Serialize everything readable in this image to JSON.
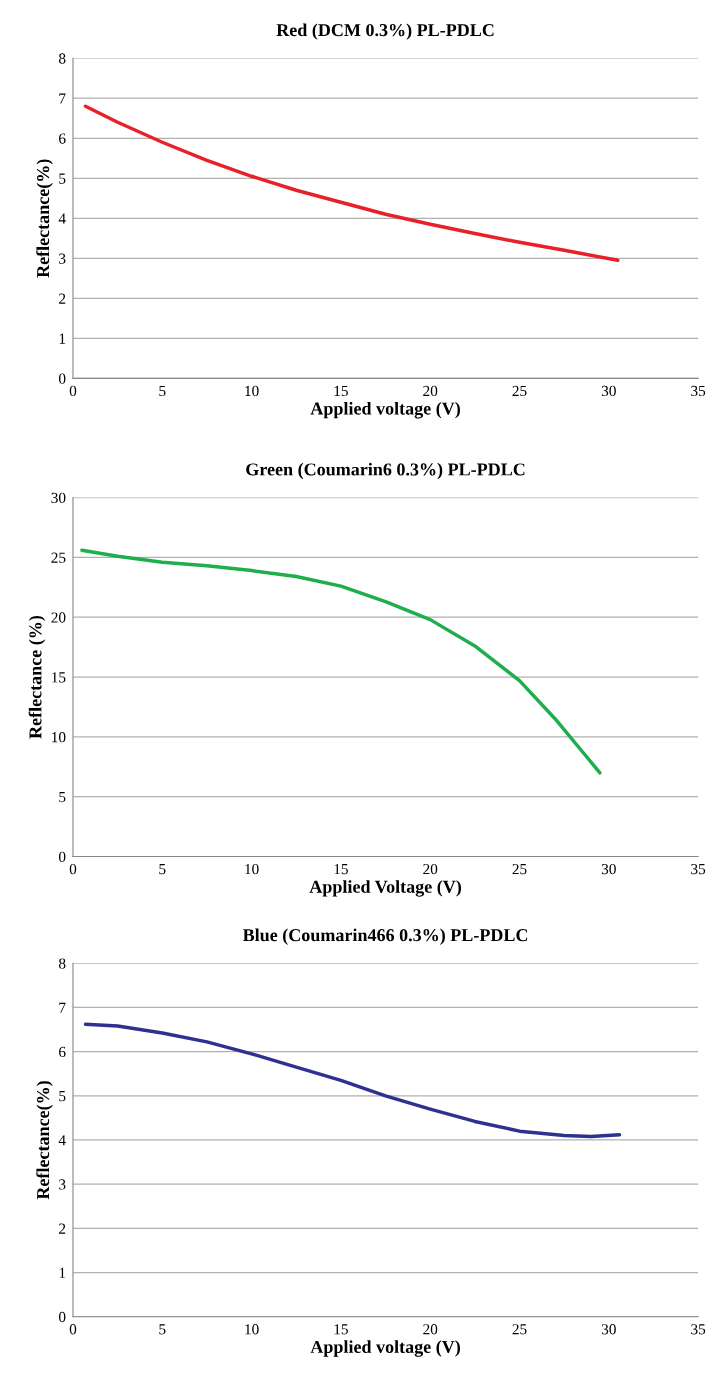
{
  "chart_data": [
    {
      "type": "line",
      "title": "Red (DCM 0.3%) PL-PDLC",
      "xlabel": "Applied voltage (V)",
      "ylabel": "Reflectance(%)",
      "xlim": [
        0,
        35
      ],
      "xticks": [
        0,
        5,
        10,
        15,
        20,
        25,
        30,
        35
      ],
      "ylim": [
        0,
        8
      ],
      "yticks": [
        0,
        1,
        2,
        3,
        4,
        5,
        6,
        7,
        8
      ],
      "grid": "y",
      "marker": "none",
      "line_style": "solid",
      "series": [
        {
          "color": "#e8202a",
          "x": [
            0.7,
            2.5,
            5,
            7.5,
            10,
            12.5,
            15,
            17.5,
            20,
            22.5,
            25,
            27.5,
            30.5
          ],
          "values": [
            6.8,
            6.4,
            5.9,
            5.45,
            5.05,
            4.7,
            4.4,
            4.1,
            3.85,
            3.62,
            3.4,
            3.2,
            2.95
          ]
        }
      ]
    },
    {
      "type": "line",
      "title": "Green (Coumarin6 0.3%) PL-PDLC",
      "xlabel": "Applied Voltage (V)",
      "ylabel": "Reflectance (%)",
      "xlim": [
        0,
        35
      ],
      "xticks": [
        0,
        5,
        10,
        15,
        20,
        25,
        30,
        35
      ],
      "ylim": [
        0,
        30
      ],
      "yticks": [
        0,
        5,
        10,
        15,
        20,
        25,
        30
      ],
      "grid": "y",
      "marker": "none",
      "line_style": "solid",
      "series": [
        {
          "color": "#1fae4b",
          "x": [
            0.5,
            2.5,
            5,
            7.5,
            10,
            12.5,
            15,
            17.5,
            20,
            22.5,
            25,
            27,
            28.5,
            29.5
          ],
          "values": [
            25.6,
            25.1,
            24.6,
            24.3,
            23.9,
            23.4,
            22.6,
            21.3,
            19.8,
            17.6,
            14.7,
            11.5,
            8.8,
            7.0
          ]
        }
      ]
    },
    {
      "type": "line",
      "title": "Blue (Coumarin466 0.3%) PL-PDLC",
      "xlabel": "Applied voltage (V)",
      "ylabel": "Reflectance(%)",
      "xlim": [
        0,
        35
      ],
      "xticks": [
        0,
        5,
        10,
        15,
        20,
        25,
        30,
        35
      ],
      "ylim": [
        0,
        8
      ],
      "yticks": [
        0,
        1,
        2,
        3,
        4,
        5,
        6,
        7,
        8
      ],
      "grid": "y",
      "marker": "none",
      "line_style": "solid",
      "series": [
        {
          "color": "#2e3192",
          "x": [
            0.7,
            2.5,
            5,
            7.5,
            10,
            12.5,
            15,
            17.5,
            20,
            22.5,
            25,
            27.5,
            29,
            30.6
          ],
          "values": [
            6.62,
            6.58,
            6.42,
            6.22,
            5.95,
            5.65,
            5.35,
            5.0,
            4.7,
            4.42,
            4.2,
            4.1,
            4.08,
            4.12
          ]
        }
      ]
    }
  ]
}
